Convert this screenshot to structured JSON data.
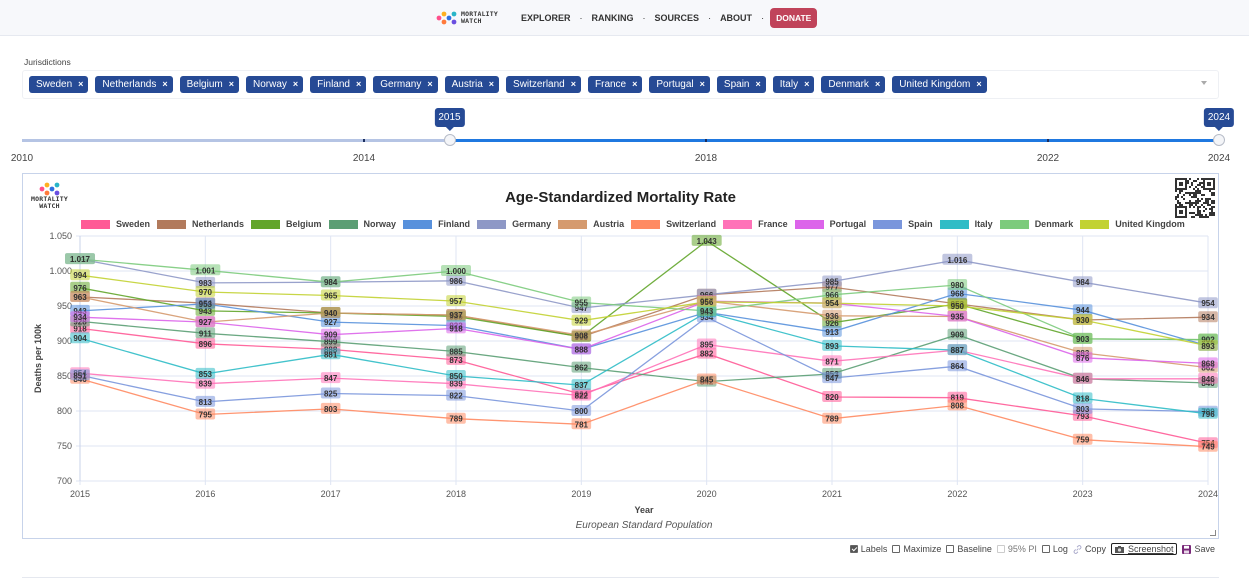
{
  "nav": {
    "brand_line1": "MORTALITY",
    "brand_line2": "WATCH",
    "items": [
      "EXPLORER",
      "RANKING",
      "SOURCES",
      "ABOUT"
    ],
    "separator": "·",
    "donate": "DONATE",
    "donate_color": "#c0435a"
  },
  "jurisdictions": {
    "label": "Jurisdictions",
    "remove_glyph": "×",
    "chips": [
      "Sweden",
      "Netherlands",
      "Belgium",
      "Norway",
      "Finland",
      "Germany",
      "Austria",
      "Switzerland",
      "France",
      "Portugal",
      "Spain",
      "Italy",
      "Denmark",
      "United Kingdom"
    ],
    "chip_color": "#264a95"
  },
  "year_slider": {
    "min": 2010,
    "max": 2024,
    "from": 2015,
    "to": 2024,
    "from_label": "2015",
    "to_label": "2024",
    "tick_labels": [
      "2010",
      "2014",
      "2018",
      "2022",
      "2024"
    ],
    "tick_values": [
      2010,
      2014,
      2018,
      2022,
      2024
    ]
  },
  "chart_data": {
    "type": "line",
    "title": "Age-Standardized Mortality Rate",
    "subtitle": "European Standard Population",
    "xlabel": "Year",
    "ylabel": "Deaths per 100k",
    "x": [
      "2015",
      "2016",
      "2017",
      "2018",
      "2019",
      "2020",
      "2021",
      "2022",
      "2023",
      "2024"
    ],
    "ylim": [
      700,
      1050
    ],
    "yticks": [
      700,
      750,
      800,
      850,
      900,
      950,
      1000,
      1050
    ],
    "ytick_labels": [
      "700",
      "750",
      "800",
      "850",
      "900",
      "950",
      "1.000",
      "1.050"
    ],
    "grid": true,
    "legend_position": "top",
    "data_labels": true,
    "series": [
      {
        "name": "Sweden",
        "color": "#ff5a96",
        "values": [
          918,
          896,
          888,
          873,
          824,
          882,
          820,
          819,
          793,
          754
        ]
      },
      {
        "name": "Netherlands",
        "color": "#b27a5c",
        "values": [
          963,
          954,
          940,
          937,
          906,
          966,
          977,
          953,
          930,
          934
        ]
      },
      {
        "name": "Belgium",
        "color": "#62a52a",
        "values": [
          976,
          943,
          940,
          935,
          906,
          1043,
          926,
          953,
          903,
          902
        ]
      },
      {
        "name": "Norway",
        "color": "#5b9e74",
        "values": [
          928,
          911,
          899,
          885,
          862,
          842,
          853,
          909,
          846,
          840
        ]
      },
      {
        "name": "Finland",
        "color": "#5891dc",
        "values": [
          943,
          953,
          927,
          922,
          888,
          941,
          913,
          968,
          944,
          893
        ]
      },
      {
        "name": "Germany",
        "color": "#8e98c6",
        "values": [
          1017,
          983,
          984,
          986,
          947,
          966,
          985,
          1016,
          984,
          954
        ]
      },
      {
        "name": "Austria",
        "color": "#d59a6e",
        "values": [
          963,
          927,
          940,
          937,
          908,
          957,
          936,
          935,
          883,
          862
        ]
      },
      {
        "name": "Switzerland",
        "color": "#ff8a62",
        "values": [
          846,
          795,
          803,
          789,
          781,
          845,
          789,
          808,
          759,
          749
        ]
      },
      {
        "name": "France",
        "color": "#ff72b8",
        "values": [
          854,
          839,
          847,
          839,
          822,
          895,
          871,
          887,
          846,
          846
        ]
      },
      {
        "name": "Portugal",
        "color": "#dc64ea",
        "values": [
          934,
          927,
          909,
          918,
          888,
          957,
          954,
          935,
          876,
          868
        ]
      },
      {
        "name": "Spain",
        "color": "#7a96dc",
        "values": [
          851,
          813,
          825,
          822,
          800,
          934,
          847,
          864,
          803,
          799
        ]
      },
      {
        "name": "Italy",
        "color": "#2fbcc6",
        "values": [
          904,
          853,
          881,
          850,
          837,
          941,
          893,
          887,
          818,
          796
        ]
      },
      {
        "name": "Denmark",
        "color": "#7ccb7c",
        "values": [
          1017,
          1001,
          984,
          1000,
          955,
          943,
          966,
          980,
          903,
          902
        ]
      },
      {
        "name": "United Kingdom",
        "color": "#c2d232",
        "values": [
          994,
          970,
          965,
          957,
          929,
          956,
          954,
          950,
          930,
          893
        ]
      }
    ]
  },
  "toolbar": {
    "labels": "Labels",
    "labels_checked": true,
    "maximize": "Maximize",
    "maximize_checked": false,
    "baseline": "Baseline",
    "baseline_checked": false,
    "pi": "95% PI",
    "pi_checked": false,
    "log": "Log",
    "log_checked": false,
    "copy": "Copy",
    "screenshot": "Screenshot",
    "save": "Save"
  }
}
